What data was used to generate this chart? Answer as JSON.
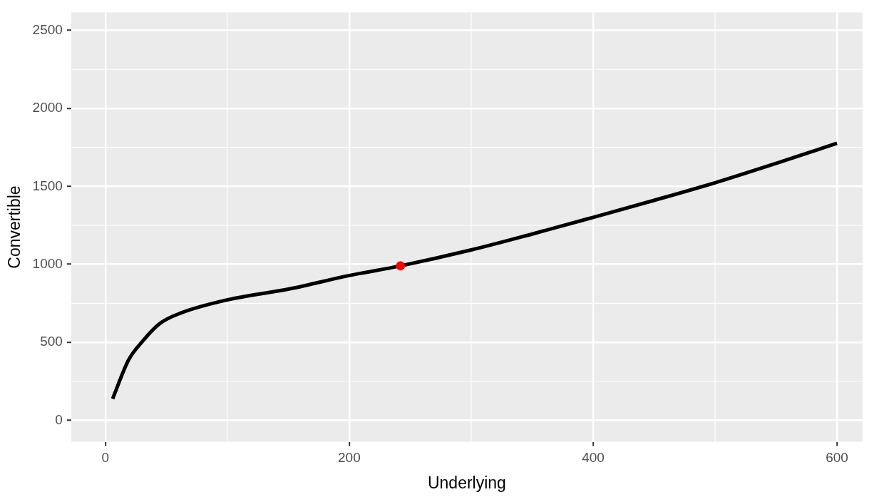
{
  "chart_data": {
    "type": "line",
    "xlabel": "Underlying",
    "ylabel": "Convertible",
    "xlim": [
      -28,
      621
    ],
    "ylim": [
      -138,
      2615
    ],
    "xticks": [
      0,
      200,
      400,
      600
    ],
    "yticks": [
      0,
      500,
      1000,
      1500,
      2000,
      2500
    ],
    "grid": true,
    "series": [
      {
        "color": "#000000",
        "x": [
          6,
          19,
          31,
          45,
          62,
          100,
          152,
          200,
          242,
          300,
          350,
          400,
          450,
          500,
          550,
          600
        ],
        "values": [
          138,
          386,
          511,
          622,
          688,
          772,
          844,
          928,
          990,
          1092,
          1194,
          1301,
          1410,
          1523,
          1647,
          1776
        ]
      },
      {
        "type": "scatter",
        "color": "#ff0000",
        "x": [
          242
        ],
        "values": [
          990
        ]
      }
    ]
  }
}
